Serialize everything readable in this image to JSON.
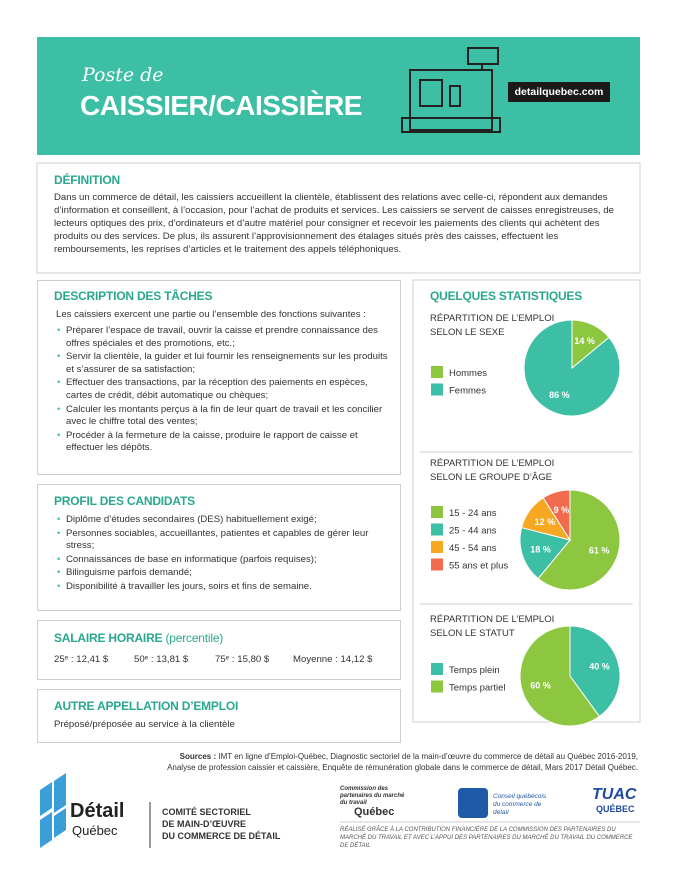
{
  "header": {
    "subtitle": "Poste de",
    "title": "CAISSIER/CAISSIÈRE",
    "website": "detailquebec.com"
  },
  "definition": {
    "heading": "DÉFINITION",
    "text": "Dans un commerce de détail, les caissiers accueillent la clientèle, établissent des relations avec celle-ci, répondent aux demandes d’information et conseillent, à l’occasion, pour l’achat de produits et services. Les caissiers se servent de caisses enregistreuses, de lecteurs optiques des prix, d’ordinateurs et d’autre matériel pour consigner et recevoir les paiements des clients qui achètent des produits ou des services. De plus, ils assurent l’approvisionnement des étalages situés près des caisses, effectuent les remboursements, les reprises d’articles et le traitement des appels téléphoniques."
  },
  "tasks": {
    "heading": "DESCRIPTION DES TÂCHES",
    "intro": "Les caissiers exercent une partie ou l’ensemble des fonctions suivantes :",
    "items": [
      "Préparer l’espace de travail, ouvrir la caisse et prendre connaissance des offres spéciales et des promotions, etc.;",
      "Servir la clientèle, la guider et lui fournir les renseignements sur les produits et s’assurer de sa satisfaction;",
      "Effectuer des transactions, par la réception des paiements en espèces, cartes de crédit, débit automatique ou chèques;",
      "Calculer les montants perçus à la fin de leur quart de travail et les concilier avec le chiffre total des ventes;",
      "Procéder à la fermeture de la caisse, produire le rapport de caisse et effectuer les dépôts."
    ]
  },
  "profile": {
    "heading": "PROFIL DES CANDIDATS",
    "items": [
      "Diplôme d’études secondaires (DES) habituellement exigé;",
      "Personnes sociables, accueillantes, patientes et capables de gérer leur stress;",
      "Connaissances de base en informatique (parfois requises);",
      "Bilinguisme parfois demandé;",
      "Disponibilité à travailler les jours, soirs et fins de semaine."
    ]
  },
  "salary": {
    "heading": "SALAIRE HORAIRE",
    "heading_note": "(percentile)",
    "items": [
      "25ᵉ : 12,41 $",
      "50ᵉ : 13,81 $",
      "75ᵉ : 15,80 $",
      "Moyenne : 14,12 $"
    ]
  },
  "other_title": {
    "heading": "AUTRE APPELLATION D’EMPLOI",
    "text": "Préposé/préposée au service à la clientèle"
  },
  "stats": {
    "heading": "QUELQUES STATISTIQUES"
  },
  "chart_data": [
    {
      "type": "pie",
      "title": [
        "RÉPARTITION DE L’EMPLOI",
        "SELON LE SEXE"
      ],
      "categories": [
        "Hommes",
        "Femmes"
      ],
      "values": [
        14,
        86
      ],
      "value_labels": [
        "14 %",
        "86 %"
      ],
      "colors": [
        "#8dc63f",
        "#3dbfa5"
      ]
    },
    {
      "type": "pie",
      "title": [
        "RÉPARTITION DE L’EMPLOI",
        "SELON LE GROUPE D’ÂGE"
      ],
      "categories": [
        "15 - 24 ans",
        "25 - 44 ans",
        "45 - 54 ans",
        "55 ans et plus"
      ],
      "values": [
        61,
        18,
        12,
        9
      ],
      "value_labels": [
        "61 %",
        "18 %",
        "12 %",
        "9 %"
      ],
      "colors": [
        "#8dc63f",
        "#3dbfa5",
        "#f7a823",
        "#f26b4f"
      ]
    },
    {
      "type": "pie",
      "title": [
        "RÉPARTITION DE L’EMPLOI",
        "SELON LE STATUT"
      ],
      "categories": [
        "Temps plein",
        "Temps partiel"
      ],
      "values": [
        40,
        60
      ],
      "value_labels": [
        "40 %",
        "60 %"
      ],
      "colors": [
        "#3dbfa5",
        "#8dc63f"
      ]
    }
  ],
  "sources": {
    "label": "Sources :",
    "text": "IMT en ligne d’Emploi-Québec, Diagnostic sectoriel de la main-d’œuvre du commerce de détail au Québec 2016-2019, Analyse de profession caissier et caissière, Enquête de rémunération globale dans le commerce de détail, Mars 2017 Détail Québec."
  },
  "footer": {
    "logo_main": "Détail",
    "logo_sub": "Québec",
    "committee": [
      "COMITÉ SECTORIEL",
      "DE MAIN-D’ŒUVRE",
      "DU COMMERCE DE DÉTAIL"
    ],
    "cpmt": "Commission des partenaires du marché du travail",
    "quebec": "Québec",
    "cqcd": "Conseil québécois du commerce de détail",
    "tuac": "TUAC",
    "tuac_sub": "QUÉBEC",
    "note": "RÉALISÉ GRÂCE À LA CONTRIBUTION FINANCIÈRE DE LA COMMISSION DES PARTENAIRES DU MARCHÉ DU TRAVAIL ET AVEC L’APPUI DES PARTENAIRES DU MARCHÉ DU TRAVAIL DU COMMERCE DE DÉTAIL"
  }
}
